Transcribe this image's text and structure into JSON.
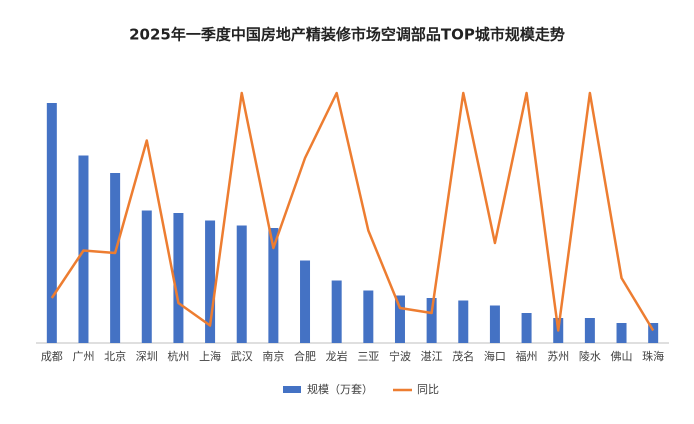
{
  "chart_data": {
    "type": "bar-line",
    "title": "2025年一季度中国房地产精装修市场空调部品TOP城市规模走势",
    "categories": [
      "成都",
      "广州",
      "北京",
      "深圳",
      "杭州",
      "上海",
      "武汉",
      "南京",
      "合肥",
      "龙岩",
      "三亚",
      "宁波",
      "湛江",
      "茂名",
      "海口",
      "福州",
      "苏州",
      "陵水",
      "佛山",
      "珠海"
    ],
    "series": [
      {
        "name": "规模（万套）",
        "type": "bar",
        "color": "#4472c4",
        "values": [
          96,
          75,
          68,
          53,
          52,
          49,
          47,
          46,
          33,
          25,
          21,
          19,
          18,
          17,
          15,
          12,
          10,
          10,
          8,
          8
        ]
      },
      {
        "name": "同比",
        "type": "line",
        "axis": "y2",
        "color": "#ed7d31",
        "values": [
          18,
          37,
          36,
          81,
          16,
          7,
          100,
          38,
          74,
          100,
          45,
          14,
          12,
          100,
          40,
          100,
          5,
          100,
          26,
          5
        ]
      }
    ],
    "ylim": [
      0,
      100
    ],
    "y2lim": [
      0,
      100
    ],
    "legend": "bottom"
  }
}
